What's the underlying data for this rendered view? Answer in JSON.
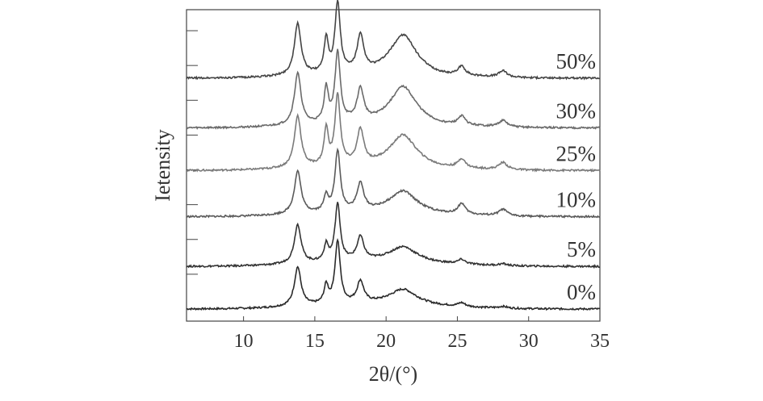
{
  "chart_data": {
    "type": "line",
    "xlabel": "2θ/(°)",
    "ylabel": "Ietensity",
    "xlim": [
      6,
      35
    ],
    "xticks": [
      10,
      15,
      20,
      25,
      30,
      35
    ],
    "grid": false,
    "legend": "inline-right",
    "y_ticks_labeled": false,
    "stacked": true,
    "peaks_2theta": [
      13.8,
      15.8,
      16.6,
      18.2,
      21.2,
      25.3,
      28.2
    ],
    "series": [
      {
        "name": "0%",
        "color": "#2a2a2a",
        "baseline": 0.0,
        "peak_heights": [
          1.1,
          0.5,
          1.75,
          0.6,
          0.35,
          0.1,
          0.05
        ]
      },
      {
        "name": "5%",
        "color": "#333333",
        "baseline": 1.2,
        "peak_heights": [
          1.1,
          0.45,
          1.6,
          0.65,
          0.35,
          0.12,
          0.05
        ]
      },
      {
        "name": "10%",
        "color": "#5a5a5a",
        "baseline": 2.6,
        "peak_heights": [
          1.2,
          0.45,
          1.7,
          0.75,
          0.5,
          0.3,
          0.18
        ]
      },
      {
        "name": "25%",
        "color": "#7a7a7a",
        "baseline": 3.9,
        "peak_heights": [
          1.45,
          1.0,
          1.95,
          0.95,
          0.75,
          0.25,
          0.2
        ]
      },
      {
        "name": "30%",
        "color": "#6a6a6a",
        "baseline": 5.1,
        "peak_heights": [
          1.45,
          0.95,
          1.95,
          0.9,
          0.9,
          0.25,
          0.18
        ]
      },
      {
        "name": "50%",
        "color": "#444444",
        "baseline": 6.5,
        "peak_heights": [
          1.45,
          0.95,
          1.95,
          1.0,
          0.95,
          0.25,
          0.18
        ]
      }
    ]
  }
}
